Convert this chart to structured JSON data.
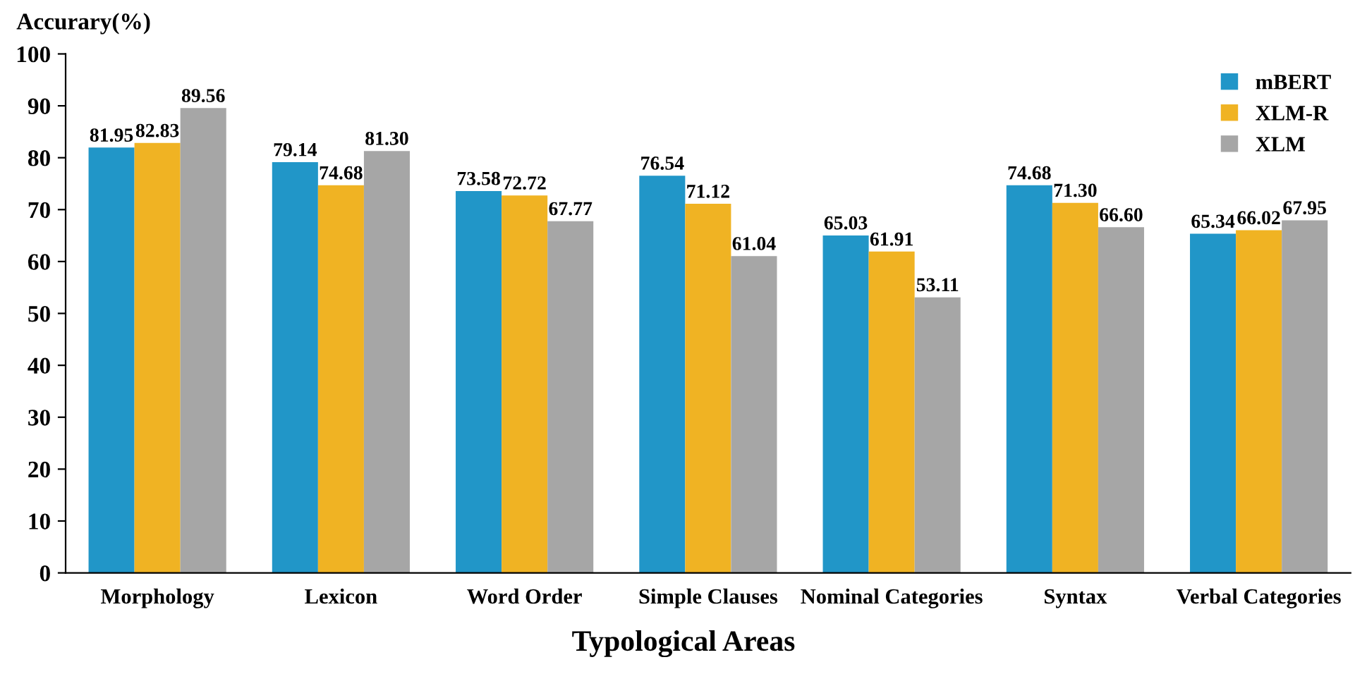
{
  "chart_data": {
    "type": "bar",
    "ylabel": "Accurary(%)",
    "xlabel": "Typological Areas",
    "categories": [
      "Morphology",
      "Lexicon",
      "Word Order",
      "Simple Clauses",
      "Nominal Categories",
      "Syntax",
      "Verbal Categories"
    ],
    "series": [
      {
        "name": "mBERT",
        "color": "#2196c8",
        "values": [
          81.95,
          79.14,
          73.58,
          76.54,
          65.03,
          74.68,
          65.34
        ]
      },
      {
        "name": "XLM-R",
        "color": "#f0b323",
        "values": [
          82.83,
          74.68,
          72.72,
          71.12,
          61.91,
          71.3,
          66.02
        ]
      },
      {
        "name": "XLM",
        "color": "#a6a6a6",
        "values": [
          89.56,
          81.3,
          67.77,
          61.04,
          53.11,
          66.6,
          67.95
        ]
      }
    ],
    "value_labels": [
      [
        "81.95",
        "79.14",
        "73.58",
        "76.54",
        "65.03",
        "74.68",
        "65.34"
      ],
      [
        "82.83",
        "74.68",
        "72.72",
        "71.12",
        "61.91",
        "71.30",
        "66.02"
      ],
      [
        "89.56",
        "81.30",
        "67.77",
        "61.04",
        "53.11",
        "66.60",
        "67.95"
      ]
    ],
    "ylim": [
      0,
      100
    ],
    "yticks": [
      0,
      10,
      20,
      30,
      40,
      50,
      60,
      70,
      80,
      90,
      100
    ],
    "legend": "top right",
    "grid": false
  }
}
